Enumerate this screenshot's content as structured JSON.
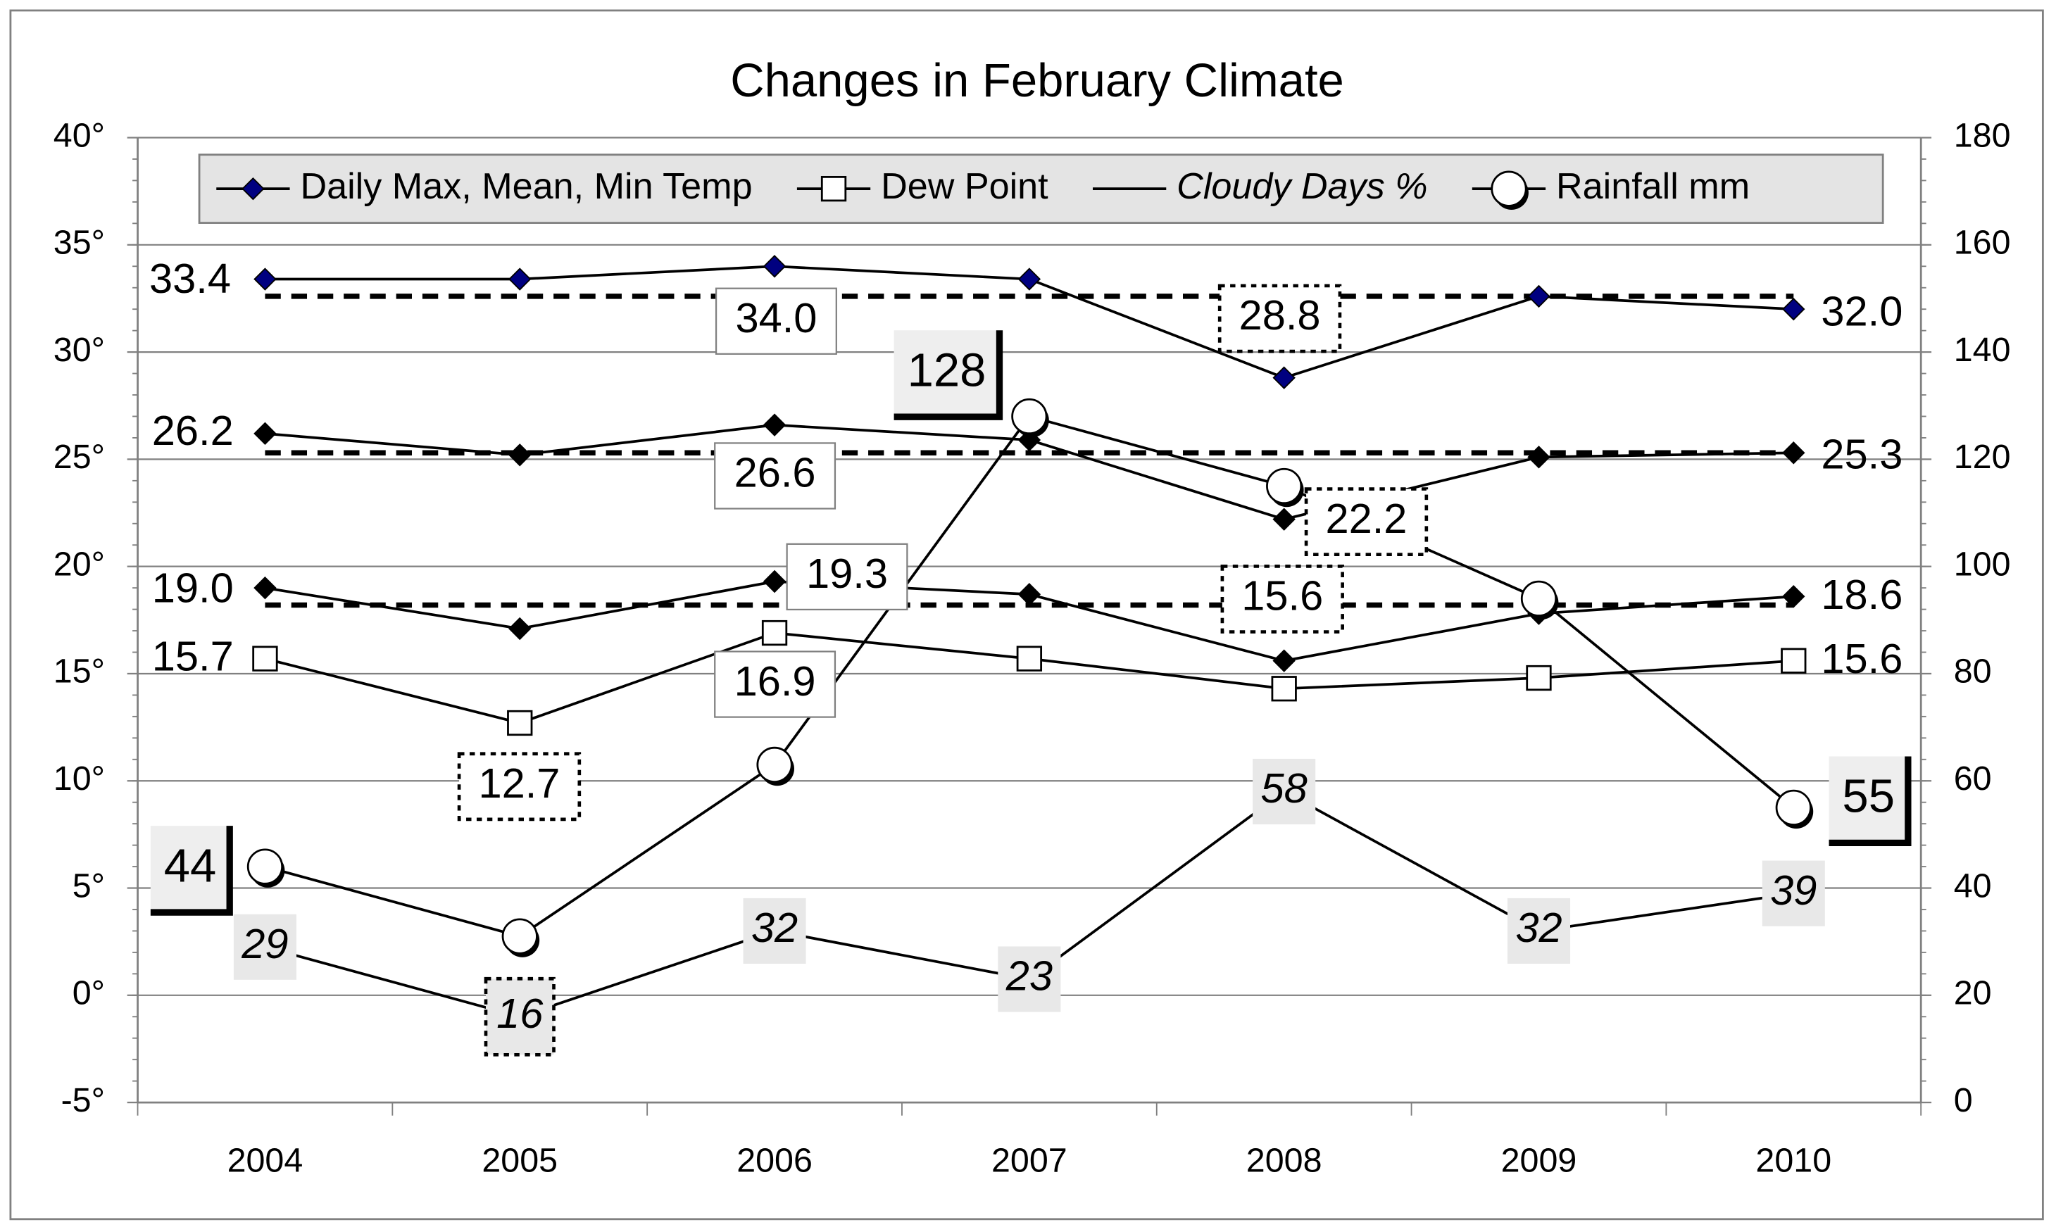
{
  "chart_data": {
    "type": "line",
    "title": "Changes in February Climate",
    "categories": [
      "2004",
      "2005",
      "2006",
      "2007",
      "2008",
      "2009",
      "2010"
    ],
    "ylim": [
      -5,
      40
    ],
    "yticks": [
      {
        "value": -5,
        "label": "-5°"
      },
      {
        "value": 0,
        "label": "0°"
      },
      {
        "value": 5,
        "label": "5°"
      },
      {
        "value": 10,
        "label": "10°"
      },
      {
        "value": 15,
        "label": "15°"
      },
      {
        "value": 20,
        "label": "20°"
      },
      {
        "value": 25,
        "label": "25°"
      },
      {
        "value": 30,
        "label": "30°"
      },
      {
        "value": 35,
        "label": "35°"
      },
      {
        "value": 40,
        "label": "40°"
      }
    ],
    "y2lim": [
      0,
      180
    ],
    "y2ticks": [
      0,
      20,
      40,
      60,
      80,
      100,
      120,
      140,
      160,
      180
    ],
    "grid": true,
    "legend": "top",
    "mean_lines": [
      32.6,
      25.3,
      18.2
    ],
    "series": [
      {
        "name": "Daily Max, Mean, Min Temp",
        "color": "#000080",
        "marker": "diamond",
        "values": [
          33.4,
          33.4,
          34.0,
          33.4,
          28.8,
          32.6,
          32.0
        ],
        "value_labels": [
          "33.4",
          null,
          "34.0",
          null,
          "28.8",
          null,
          "32.0"
        ]
      },
      {
        "color": "#000000",
        "marker": "diamond",
        "values": [
          26.2,
          25.2,
          26.6,
          25.9,
          22.2,
          25.1,
          25.3
        ],
        "value_labels": [
          "26.2",
          null,
          "26.6",
          null,
          "22.2",
          null,
          "25.3"
        ]
      },
      {
        "color": "#000000",
        "marker": "diamond",
        "values": [
          19.0,
          17.1,
          19.3,
          18.7,
          15.6,
          17.8,
          18.6
        ],
        "value_labels": [
          "19.0",
          null,
          "19.3",
          null,
          "15.6",
          null,
          "18.6"
        ]
      },
      {
        "name": "Dew Point",
        "color": "#ffffff",
        "marker": "square",
        "values": [
          15.7,
          12.7,
          16.9,
          15.7,
          14.3,
          14.8,
          15.6
        ],
        "value_labels": [
          "15.7",
          "12.7",
          "16.9",
          null,
          null,
          null,
          "15.6"
        ]
      },
      {
        "name": "Cloudy Days %",
        "color": "#000000",
        "marker": "none",
        "axis": "y2",
        "values": [
          29,
          16,
          32,
          23,
          58,
          32,
          39
        ],
        "value_labels": [
          "29",
          "16",
          "32",
          "23",
          "58",
          "32",
          "39"
        ]
      },
      {
        "name": "Rainfall mm",
        "color": "#ffffff",
        "marker": "circle",
        "axis": "y2",
        "values": [
          44,
          31,
          63,
          128,
          115,
          94,
          55
        ],
        "value_labels": [
          "44",
          null,
          null,
          "128",
          null,
          null,
          "55"
        ]
      }
    ]
  }
}
